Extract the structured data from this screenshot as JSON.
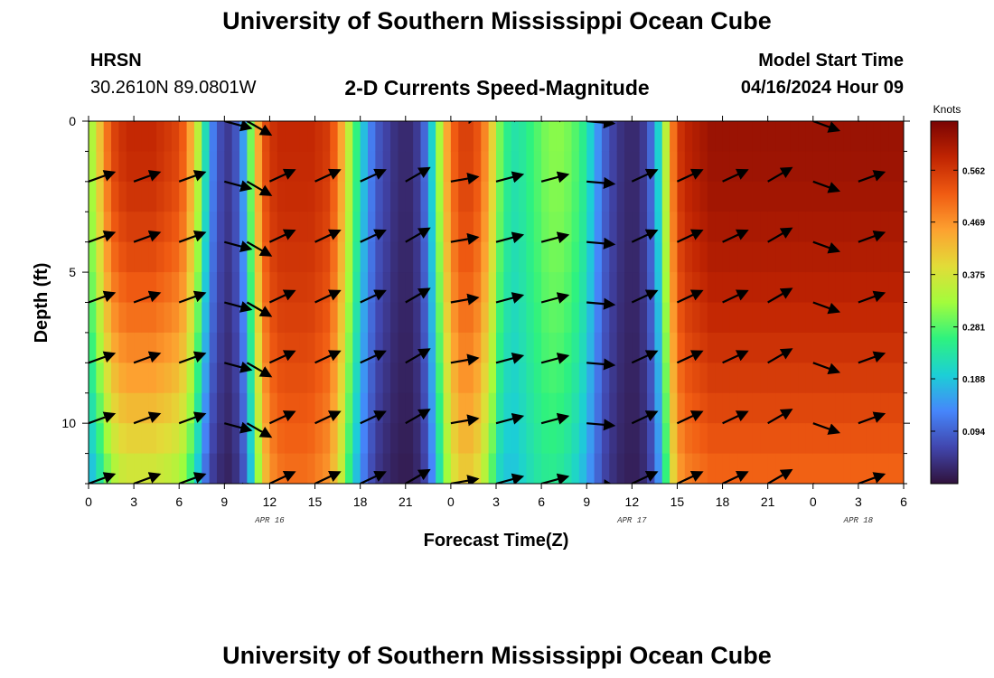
{
  "header": {
    "title": "University of Southern Mississippi Ocean Cube",
    "station_code": "HRSN",
    "coordinates": "30.2610N  89.0801W",
    "subtitle": "2-D Currents Speed-Magnitude",
    "model_start_label": "Model Start Time",
    "model_start_value": "04/16/2024 Hour 09"
  },
  "footer": {
    "title": "University of Southern Mississippi Ocean Cube"
  },
  "colors": {
    "ramp": [
      "#30123b",
      "#4146ad",
      "#4686fb",
      "#1ccfd6",
      "#2ef27f",
      "#a3fc3c",
      "#e2dc38",
      "#fda130",
      "#f05b12",
      "#c02402",
      "#7a0403"
    ]
  },
  "chart_data": {
    "type": "heatmap",
    "title": "2-D Currents Speed-Magnitude",
    "xlabel": "Forecast Time(Z)",
    "ylabel": "Depth (ft)",
    "x_range_hours": [
      0,
      54
    ],
    "y_range_ft": [
      0,
      12
    ],
    "x_tick_hours": [
      0,
      3,
      6,
      9,
      12,
      15,
      18,
      21,
      24,
      27,
      30,
      33,
      36,
      39,
      42,
      45,
      48,
      51,
      54
    ],
    "x_tick_labels": [
      "0",
      "3",
      "6",
      "9",
      "12",
      "15",
      "18",
      "21",
      "0",
      "3",
      "6",
      "9",
      "12",
      "15",
      "18",
      "21",
      "0",
      "3",
      "6"
    ],
    "y_tick_values": [
      0,
      5,
      10
    ],
    "y_tick_labels": [
      "0",
      "5",
      "10"
    ],
    "date_labels": [
      {
        "text": "APR 16",
        "hour": 12
      },
      {
        "text": "APR 17",
        "hour": 36
      },
      {
        "text": "APR 18",
        "hour": 51
      }
    ],
    "colorbar": {
      "unit": "Knots",
      "range": [
        0,
        0.65
      ],
      "ticks": [
        0.094,
        0.188,
        0.281,
        0.375,
        0.469,
        0.562
      ],
      "tick_labels": [
        "0.094",
        "0.188",
        "0.281",
        "0.375",
        "0.469",
        "0.562"
      ]
    },
    "speed_profile": {
      "hours": [
        0,
        0.5,
        1,
        1.5,
        2,
        2.5,
        3,
        3.5,
        4,
        4.5,
        5,
        5.5,
        6,
        6.5,
        7,
        7.5,
        8,
        8.5,
        9,
        9.5,
        10,
        10.5,
        11,
        11.5,
        12,
        12.5,
        13,
        13.5,
        14,
        14.5,
        15,
        15.5,
        16,
        16.5,
        17,
        17.5,
        18,
        18.5,
        19,
        19.5,
        20,
        20.5,
        21,
        21.5,
        22,
        22.5,
        23,
        23.5,
        24,
        24.5,
        25,
        25.5,
        26,
        26.5,
        27,
        27.5,
        28,
        28.5,
        29,
        29.5,
        30,
        30.5,
        31,
        31.5,
        32,
        32.5,
        33,
        33.5,
        34,
        34.5,
        35,
        35.5,
        36,
        36.5,
        37,
        37.5,
        38,
        38.5,
        39,
        39.5,
        40,
        40.5,
        41,
        41.5,
        42,
        42.5,
        43,
        43.5,
        44,
        44.5,
        45,
        45.5,
        46,
        46.5,
        47,
        47.5,
        48,
        48.5,
        49,
        49.5,
        50,
        50.5,
        51,
        51.5,
        52,
        52.5,
        53,
        53.5,
        54
      ],
      "surface": [
        0.34,
        0.42,
        0.5,
        0.55,
        0.57,
        0.58,
        0.58,
        0.58,
        0.58,
        0.57,
        0.56,
        0.55,
        0.52,
        0.45,
        0.35,
        0.22,
        0.12,
        0.07,
        0.05,
        0.08,
        0.15,
        0.3,
        0.45,
        0.54,
        0.57,
        0.58,
        0.58,
        0.58,
        0.58,
        0.58,
        0.57,
        0.56,
        0.52,
        0.45,
        0.35,
        0.26,
        0.18,
        0.12,
        0.08,
        0.06,
        0.04,
        0.03,
        0.03,
        0.05,
        0.1,
        0.2,
        0.33,
        0.45,
        0.52,
        0.55,
        0.55,
        0.53,
        0.48,
        0.4,
        0.3,
        0.25,
        0.23,
        0.24,
        0.26,
        0.28,
        0.3,
        0.31,
        0.31,
        0.3,
        0.28,
        0.25,
        0.2,
        0.14,
        0.09,
        0.06,
        0.04,
        0.03,
        0.03,
        0.05,
        0.1,
        0.2,
        0.35,
        0.5,
        0.57,
        0.59,
        0.6,
        0.61,
        0.62,
        0.62,
        0.62,
        0.62,
        0.62,
        0.62,
        0.62,
        0.62,
        0.62,
        0.62,
        0.62,
        0.62,
        0.62,
        0.62,
        0.62,
        0.62,
        0.62,
        0.62,
        0.62,
        0.62,
        0.62,
        0.62,
        0.62,
        0.62,
        0.62,
        0.62,
        0.62
      ],
      "bottom_factor": [
        0.55,
        0.57,
        0.6,
        0.62,
        0.64,
        0.64,
        0.64,
        0.64,
        0.64,
        0.64,
        0.64,
        0.63,
        0.62,
        0.6,
        0.55,
        0.5,
        0.45,
        0.45,
        0.45,
        0.5,
        0.55,
        0.62,
        0.72,
        0.8,
        0.84,
        0.86,
        0.87,
        0.87,
        0.87,
        0.86,
        0.85,
        0.84,
        0.82,
        0.8,
        0.75,
        0.7,
        0.66,
        0.6,
        0.55,
        0.5,
        0.5,
        0.5,
        0.5,
        0.55,
        0.6,
        0.65,
        0.7,
        0.72,
        0.74,
        0.75,
        0.75,
        0.74,
        0.72,
        0.7,
        0.7,
        0.75,
        0.82,
        0.85,
        0.85,
        0.84,
        0.82,
        0.8,
        0.78,
        0.76,
        0.74,
        0.72,
        0.7,
        0.68,
        0.66,
        0.64,
        0.62,
        0.6,
        0.6,
        0.62,
        0.66,
        0.7,
        0.75,
        0.8,
        0.82,
        0.83,
        0.83,
        0.83,
        0.83,
        0.83,
        0.83,
        0.83,
        0.83,
        0.83,
        0.83,
        0.83,
        0.83,
        0.83,
        0.83,
        0.83,
        0.83,
        0.83,
        0.83,
        0.83,
        0.83,
        0.83,
        0.83,
        0.83,
        0.83,
        0.83,
        0.83,
        0.83,
        0.83,
        0.83,
        0.83
      ]
    },
    "vector_depths_ft": [
      0,
      2,
      4,
      6,
      8,
      10,
      12
    ],
    "vectors_deg": [
      {
        "hour": 0,
        "angle": -20
      },
      {
        "hour": 3,
        "angle": -20
      },
      {
        "hour": 6,
        "angle": -20
      },
      {
        "hour": 9,
        "angle": 15
      },
      {
        "hour": 10.5,
        "angle": 30
      },
      {
        "hour": 12,
        "angle": -25
      },
      {
        "hour": 15,
        "angle": -25
      },
      {
        "hour": 18,
        "angle": -25
      },
      {
        "hour": 21,
        "angle": -30
      },
      {
        "hour": 24,
        "angle": -10
      },
      {
        "hour": 27,
        "angle": -15
      },
      {
        "hour": 30,
        "angle": -15
      },
      {
        "hour": 33,
        "angle": 5
      },
      {
        "hour": 36,
        "angle": -25
      },
      {
        "hour": 39,
        "angle": -25
      },
      {
        "hour": 42,
        "angle": -25
      },
      {
        "hour": 45,
        "angle": -30
      },
      {
        "hour": 48,
        "angle": 20
      },
      {
        "hour": 51,
        "angle": -20
      }
    ]
  }
}
